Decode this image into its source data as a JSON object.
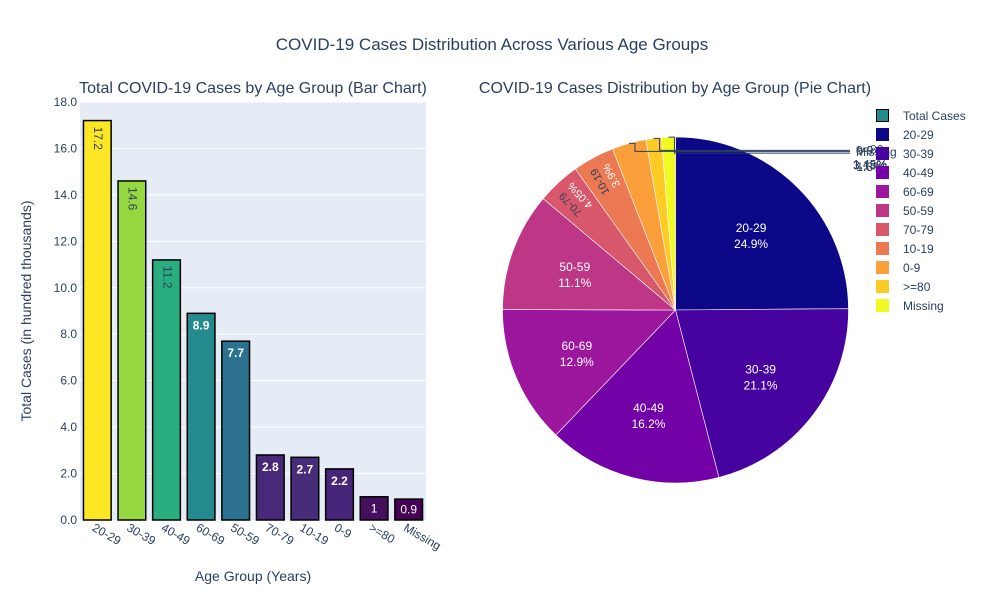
{
  "figure": {
    "title": "COVID-19 Cases Distribution Across Various Age Groups"
  },
  "colors": {
    "plot_bg": "#e5ecf6",
    "grid": "#ffffff",
    "text": "#2a3f5f",
    "bar_outline": "#000000"
  },
  "chart_data": [
    {
      "type": "bar",
      "title": "Total COVID-19 Cases by Age Group (Bar Chart)",
      "xlabel": "Age Group (Years)",
      "ylabel": "Total Cases (in hundred thousands)",
      "ylim": [
        0,
        18
      ],
      "yticks": [
        "0.0",
        "2.0",
        "4.0",
        "6.0",
        "8.0",
        "10.0",
        "12.0",
        "14.0",
        "16.0",
        "18.0"
      ],
      "grid": true,
      "categories": [
        "20-29",
        "30-39",
        "40-49",
        "60-69",
        "50-59",
        "70-79",
        "10-19",
        "0-9",
        ">=80",
        "Missing"
      ],
      "values": [
        17.2,
        14.6,
        11.2,
        8.9,
        7.7,
        2.8,
        2.7,
        2.2,
        1,
        0.9
      ],
      "labels": [
        "17.2",
        "14.6",
        "11.2",
        "8.9",
        "7.7",
        "2.8",
        "2.7",
        "2.2",
        "1",
        "0.9"
      ],
      "colors": [
        "#fde725",
        "#95d840",
        "#29af7f",
        "#238a8d",
        "#2b728e",
        "#482879",
        "#472c7a",
        "#46247a",
        "#440f5c",
        "#440154"
      ]
    },
    {
      "type": "pie",
      "title": "COVID-19 Cases Distribution by Age Group (Pie Chart)",
      "legend_position": "right",
      "legend": [
        "Total Cases",
        "20-29",
        "30-39",
        "40-49",
        "60-69",
        "50-59",
        "70-79",
        "10-19",
        "0-9",
        ">=80",
        "Missing"
      ],
      "legend_colors": [
        "#238a8d",
        "#0d0887",
        "#46039f",
        "#7201a8",
        "#9c179e",
        "#bd3786",
        "#d8576b",
        "#ed7953",
        "#fb9f3a",
        "#fdca26",
        "#f0f921"
      ],
      "labels": [
        "20-29",
        "30-39",
        "40-49",
        "60-69",
        "50-59",
        "70-79",
        "10-19",
        "0-9",
        ">=80",
        "Missing"
      ],
      "values": [
        24.9,
        21.1,
        16.2,
        12.9,
        11.1,
        4.05,
        3.9,
        3.18,
        1.45,
        1.3
      ],
      "percent_labels": [
        "24.9%",
        "21.1%",
        "16.2%",
        "12.9%",
        "11.1%",
        "4.05%",
        "3.9%",
        "3.18%",
        "1.45%",
        "1.3%"
      ],
      "colors": [
        "#0d0887",
        "#46039f",
        "#7201a8",
        "#9c179e",
        "#bd3786",
        "#d8576b",
        "#ed7953",
        "#fb9f3a",
        "#fdca26",
        "#f0f921"
      ]
    }
  ]
}
